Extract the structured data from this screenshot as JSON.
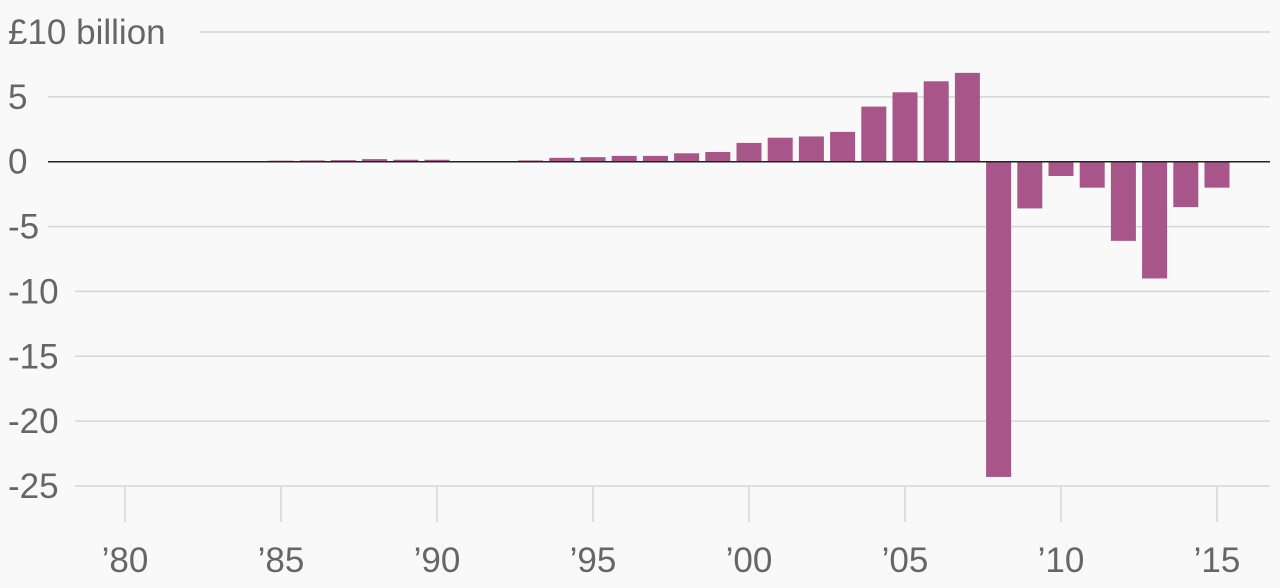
{
  "chart_data": {
    "type": "bar",
    "title": "",
    "xlabel": "",
    "ylabel": "",
    "ylim": [
      -25,
      10
    ],
    "y_ticks": [
      10,
      5,
      0,
      -5,
      -10,
      -15,
      -20,
      -25
    ],
    "y_tick_labels": [
      "£10 billion",
      "5",
      "0",
      "-5",
      "-10",
      "-15",
      "-20",
      "-25"
    ],
    "x_ticks": [
      1980,
      1985,
      1990,
      1995,
      2000,
      2005,
      2010,
      2015
    ],
    "x_tick_labels": [
      "’80",
      "’85",
      "’90",
      "’95",
      "’00",
      "’05",
      "’10",
      "’15"
    ],
    "grid": true,
    "bar_color": "#a8568a",
    "zero_line_color": "#222222",
    "x": [
      1979,
      1980,
      1981,
      1982,
      1983,
      1984,
      1985,
      1986,
      1987,
      1988,
      1989,
      1990,
      1991,
      1992,
      1993,
      1994,
      1995,
      1996,
      1997,
      1998,
      1999,
      2000,
      2001,
      2002,
      2003,
      2004,
      2005,
      2006,
      2007,
      2008,
      2009,
      2010,
      2011,
      2012,
      2013,
      2014,
      2015
    ],
    "values": [
      0.05,
      0.05,
      0.05,
      0.05,
      0.05,
      0.05,
      0.08,
      0.1,
      0.12,
      0.2,
      0.15,
      0.15,
      0.05,
      0.0,
      0.1,
      0.3,
      0.35,
      0.45,
      0.45,
      0.65,
      0.75,
      1.45,
      1.85,
      1.95,
      2.3,
      4.25,
      5.35,
      6.2,
      6.85,
      -24.3,
      -3.6,
      -1.1,
      -2.0,
      -6.1,
      -9.0,
      -3.5,
      -2.0
    ]
  }
}
